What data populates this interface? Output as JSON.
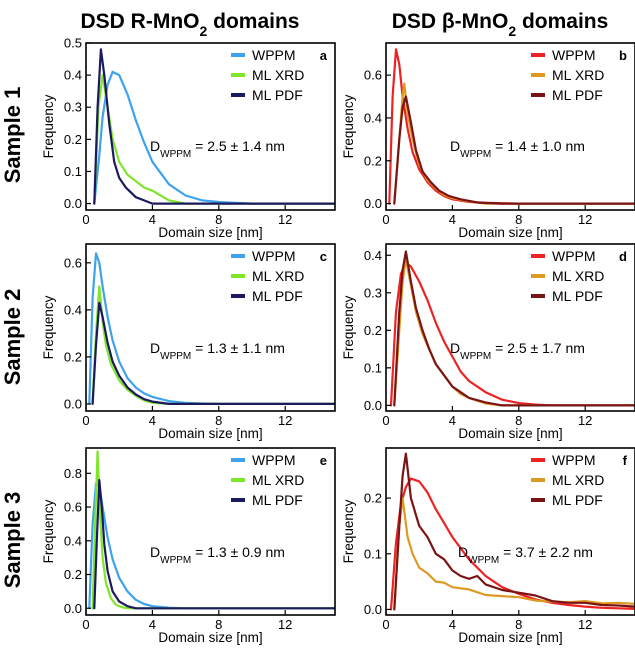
{
  "figure": {
    "col_titles": [
      {
        "pre": "DSD R-MnO",
        "sub": "2",
        "post": " domains"
      },
      {
        "pre": "DSD β-MnO",
        "sub": "2",
        "post": " domains"
      }
    ],
    "row_titles": [
      "Sample 1",
      "Sample 2",
      "Sample 3"
    ],
    "colors": {
      "WPPM_R": "#3fa2ef",
      "MLXRD_R": "#7fe52a",
      "MLPDF_R": "#1c1a5e",
      "WPPM_B": "#ee2222",
      "MLXRD_B": "#dd9a22",
      "MLPDF_B": "#7a1414"
    }
  },
  "chart_data": [
    {
      "type": "line",
      "panel_label": "a",
      "xlabel": "Domain size [nm]",
      "ylabel": "Frequency",
      "xlim": [
        0,
        15
      ],
      "xticks": [
        0,
        4,
        8,
        12
      ],
      "ylim": [
        -0.02,
        0.5
      ],
      "yticks": [
        0.0,
        0.1,
        0.2,
        0.3,
        0.4,
        0.5
      ],
      "ytick_labels": [
        "0.0",
        "0.1",
        "0.2",
        "0.3",
        "0.4",
        "0.5"
      ],
      "annotation": {
        "prefix": "D",
        "sub": "WPPM",
        "text": " = 2.5 ± 1.4 nm"
      },
      "series": [
        {
          "name": "WPPM",
          "color": "#3fa2ef",
          "x": [
            0.5,
            0.8,
            1.0,
            1.3,
            1.6,
            2.0,
            2.5,
            3.0,
            3.5,
            4.0,
            5.0,
            6.0,
            7.0,
            8.0,
            9.0,
            10.0,
            12.0,
            15.0
          ],
          "y": [
            0.0,
            0.15,
            0.27,
            0.37,
            0.41,
            0.4,
            0.34,
            0.26,
            0.19,
            0.13,
            0.06,
            0.025,
            0.01,
            0.005,
            0.002,
            0.0,
            0.0,
            0.0
          ]
        },
        {
          "name": "ML XRD",
          "color": "#7fe52a",
          "x": [
            0.5,
            0.75,
            1.0,
            1.3,
            1.6,
            2.0,
            2.5,
            3.0,
            3.5,
            4.0,
            4.5,
            5.0,
            6.0,
            15.0
          ],
          "y": [
            0.0,
            0.3,
            0.4,
            0.3,
            0.2,
            0.13,
            0.09,
            0.07,
            0.05,
            0.04,
            0.025,
            0.01,
            0.0,
            0.0
          ]
        },
        {
          "name": "ML PDF",
          "color": "#1c1a5e",
          "x": [
            0.5,
            0.7,
            0.9,
            1.1,
            1.4,
            1.7,
            2.0,
            2.4,
            3.0,
            3.5,
            4.0,
            5.0,
            15.0
          ],
          "y": [
            0.0,
            0.3,
            0.48,
            0.4,
            0.25,
            0.13,
            0.08,
            0.05,
            0.02,
            0.01,
            0.0,
            0.0,
            0.0
          ]
        }
      ]
    },
    {
      "type": "line",
      "panel_label": "b",
      "xlabel": "Domain size [nm]",
      "ylabel": "Frequency",
      "xlim": [
        0,
        15
      ],
      "xticks": [
        0,
        4,
        8,
        12
      ],
      "ylim": [
        -0.03,
        0.75
      ],
      "yticks": [
        0.0,
        0.2,
        0.4,
        0.6
      ],
      "ytick_labels": [
        "0.0",
        "0.2",
        "0.4",
        "0.6"
      ],
      "annotation": {
        "prefix": "D",
        "sub": "WPPM",
        "text": " = 1.4 ± 1.0 nm"
      },
      "series": [
        {
          "name": "WPPM",
          "color": "#ee2222",
          "x": [
            0.2,
            0.4,
            0.6,
            0.8,
            1.0,
            1.3,
            1.6,
            2.0,
            2.5,
            3.0,
            3.5,
            4.0,
            5.0,
            6.0,
            8.0,
            15.0
          ],
          "y": [
            0.0,
            0.5,
            0.72,
            0.65,
            0.5,
            0.35,
            0.24,
            0.16,
            0.1,
            0.06,
            0.035,
            0.02,
            0.008,
            0.003,
            0.0,
            0.0
          ]
        },
        {
          "name": "ML XRD",
          "color": "#dd9a22",
          "x": [
            0.5,
            0.8,
            1.0,
            1.1,
            1.3,
            1.6,
            2.0,
            2.5,
            3.0,
            3.5,
            4.0,
            5.0,
            6.0,
            8.0,
            15.0
          ],
          "y": [
            0.0,
            0.3,
            0.5,
            0.56,
            0.42,
            0.3,
            0.18,
            0.11,
            0.07,
            0.04,
            0.025,
            0.01,
            0.0,
            0.0,
            0.0
          ]
        },
        {
          "name": "ML PDF",
          "color": "#7a1414",
          "x": [
            0.5,
            0.8,
            1.0,
            1.2,
            1.5,
            1.8,
            2.2,
            2.7,
            3.2,
            3.8,
            4.5,
            5.5,
            7.0,
            15.0
          ],
          "y": [
            0.0,
            0.3,
            0.45,
            0.5,
            0.38,
            0.25,
            0.15,
            0.1,
            0.06,
            0.035,
            0.02,
            0.005,
            0.0,
            0.0
          ]
        }
      ]
    },
    {
      "type": "line",
      "panel_label": "c",
      "xlabel": "Domain size [nm]",
      "ylabel": "Frequency",
      "xlim": [
        0,
        15
      ],
      "xticks": [
        0,
        4,
        8,
        12
      ],
      "ylim": [
        -0.03,
        0.68
      ],
      "yticks": [
        0.0,
        0.2,
        0.4,
        0.6
      ],
      "ytick_labels": [
        "0.0",
        "0.2",
        "0.4",
        "0.6"
      ],
      "annotation": {
        "prefix": "D",
        "sub": "WPPM",
        "text": " = 1.3 ± 1.1 nm"
      },
      "series": [
        {
          "name": "WPPM",
          "color": "#3fa2ef",
          "x": [
            0.2,
            0.4,
            0.6,
            0.8,
            1.0,
            1.3,
            1.6,
            2.0,
            2.5,
            3.0,
            3.5,
            4.0,
            5.0,
            6.0,
            7.0,
            8.0,
            15.0
          ],
          "y": [
            0.0,
            0.45,
            0.64,
            0.6,
            0.5,
            0.37,
            0.27,
            0.18,
            0.11,
            0.07,
            0.045,
            0.03,
            0.012,
            0.005,
            0.002,
            0.0,
            0.0
          ]
        },
        {
          "name": "ML XRD",
          "color": "#7fe52a",
          "x": [
            0.4,
            0.6,
            0.8,
            1.0,
            1.2,
            1.5,
            2.0,
            2.5,
            3.0,
            3.5,
            4.0,
            5.0,
            15.0
          ],
          "y": [
            0.0,
            0.3,
            0.5,
            0.35,
            0.25,
            0.17,
            0.1,
            0.06,
            0.035,
            0.015,
            0.005,
            0.0,
            0.0
          ]
        },
        {
          "name": "ML PDF",
          "color": "#1c1a5e",
          "x": [
            0.4,
            0.6,
            0.8,
            1.0,
            1.3,
            1.6,
            2.0,
            2.5,
            3.0,
            3.5,
            4.0,
            5.0,
            15.0
          ],
          "y": [
            0.0,
            0.25,
            0.43,
            0.37,
            0.26,
            0.18,
            0.12,
            0.07,
            0.04,
            0.02,
            0.01,
            0.0,
            0.0
          ]
        }
      ]
    },
    {
      "type": "line",
      "panel_label": "d",
      "xlabel": "Domain size [nm]",
      "ylabel": "Frequency",
      "xlim": [
        0,
        15
      ],
      "xticks": [
        0,
        4,
        8,
        12
      ],
      "ylim": [
        -0.015,
        0.43
      ],
      "yticks": [
        0.0,
        0.1,
        0.2,
        0.3,
        0.4
      ],
      "ytick_labels": [
        "0.0",
        "0.1",
        "0.2",
        "0.3",
        "0.4"
      ],
      "annotation": {
        "prefix": "D",
        "sub": "WPPM",
        "text": " = 2.5 ± 1.7 nm"
      },
      "series": [
        {
          "name": "WPPM",
          "color": "#ee2222",
          "x": [
            0.3,
            0.6,
            0.9,
            1.2,
            1.5,
            2.0,
            2.5,
            3.0,
            3.5,
            4.0,
            4.5,
            5.0,
            6.0,
            7.0,
            8.0,
            9.0,
            10.0,
            15.0
          ],
          "y": [
            0.0,
            0.25,
            0.35,
            0.38,
            0.37,
            0.33,
            0.28,
            0.22,
            0.17,
            0.13,
            0.09,
            0.065,
            0.035,
            0.015,
            0.006,
            0.002,
            0.0,
            0.0
          ]
        },
        {
          "name": "ML XRD",
          "color": "#dd9a22",
          "x": [
            0.5,
            0.8,
            1.0,
            1.2,
            1.5,
            1.8,
            2.2,
            2.6,
            3.0,
            3.5,
            4.0,
            4.5,
            5.0,
            6.0,
            7.0,
            15.0
          ],
          "y": [
            0.0,
            0.2,
            0.33,
            0.39,
            0.32,
            0.25,
            0.19,
            0.15,
            0.11,
            0.08,
            0.05,
            0.03,
            0.02,
            0.005,
            0.0,
            0.0
          ]
        },
        {
          "name": "ML PDF",
          "color": "#7a1414",
          "x": [
            0.5,
            0.8,
            1.0,
            1.2,
            1.5,
            1.8,
            2.2,
            2.6,
            3.0,
            3.5,
            4.0,
            4.5,
            5.0,
            6.0,
            7.0,
            15.0
          ],
          "y": [
            0.0,
            0.25,
            0.36,
            0.41,
            0.33,
            0.26,
            0.2,
            0.15,
            0.11,
            0.08,
            0.05,
            0.035,
            0.02,
            0.008,
            0.0,
            0.0
          ]
        }
      ]
    },
    {
      "type": "line",
      "panel_label": "e",
      "xlabel": "Domain size [nm]",
      "ylabel": "Frequency",
      "xlim": [
        0,
        15
      ],
      "xticks": [
        0,
        4,
        8,
        12
      ],
      "ylim": [
        -0.04,
        0.95
      ],
      "yticks": [
        0.0,
        0.2,
        0.4,
        0.6,
        0.8
      ],
      "ytick_labels": [
        "0.0",
        "0.2",
        "0.4",
        "0.6",
        "0.8"
      ],
      "annotation": {
        "prefix": "D",
        "sub": "WPPM",
        "text": " = 1.3 ± 0.9 nm"
      },
      "series": [
        {
          "name": "WPPM",
          "color": "#3fa2ef",
          "x": [
            0.2,
            0.4,
            0.6,
            0.8,
            1.0,
            1.3,
            1.6,
            2.0,
            2.5,
            3.0,
            3.5,
            4.0,
            5.0,
            6.0,
            15.0
          ],
          "y": [
            0.0,
            0.5,
            0.74,
            0.72,
            0.6,
            0.42,
            0.29,
            0.18,
            0.1,
            0.05,
            0.025,
            0.012,
            0.003,
            0.0,
            0.0
          ]
        },
        {
          "name": "ML XRD",
          "color": "#7fe52a",
          "x": [
            0.4,
            0.55,
            0.7,
            0.85,
            1.0,
            1.2,
            1.5,
            1.8,
            2.2,
            2.6,
            15.0
          ],
          "y": [
            0.0,
            0.5,
            0.93,
            0.55,
            0.3,
            0.15,
            0.06,
            0.02,
            0.005,
            0.0,
            0.0
          ]
        },
        {
          "name": "ML PDF",
          "color": "#1c1a5e",
          "x": [
            0.5,
            0.65,
            0.8,
            0.95,
            1.1,
            1.3,
            1.6,
            2.0,
            2.5,
            3.0,
            15.0
          ],
          "y": [
            0.0,
            0.4,
            0.76,
            0.6,
            0.38,
            0.22,
            0.1,
            0.04,
            0.012,
            0.0,
            0.0
          ]
        }
      ]
    },
    {
      "type": "line",
      "panel_label": "f",
      "xlabel": "Domain size [nm]",
      "ylabel": "Frequency",
      "xlim": [
        0,
        15
      ],
      "xticks": [
        0,
        4,
        8,
        12
      ],
      "ylim": [
        -0.01,
        0.29
      ],
      "yticks": [
        0.0,
        0.1,
        0.2
      ],
      "ytick_labels": [
        "0.0",
        "0.1",
        "0.2"
      ],
      "annotation": {
        "prefix": "D",
        "sub": "WPPM",
        "text": " = 3.7 ± 2.2 nm"
      },
      "series": [
        {
          "name": "WPPM",
          "color": "#ee2222",
          "x": [
            0.3,
            0.6,
            0.9,
            1.2,
            1.5,
            2.0,
            2.5,
            3.0,
            3.5,
            4.0,
            5.0,
            6.0,
            7.0,
            8.0,
            9.0,
            10.0,
            11.0,
            12.0,
            13.0,
            14.0,
            15.0
          ],
          "y": [
            0.0,
            0.12,
            0.19,
            0.22,
            0.235,
            0.23,
            0.21,
            0.18,
            0.155,
            0.13,
            0.09,
            0.06,
            0.04,
            0.028,
            0.018,
            0.012,
            0.008,
            0.005,
            0.003,
            0.002,
            0.001
          ]
        },
        {
          "name": "ML XRD",
          "color": "#dd9a22",
          "x": [
            0.5,
            0.8,
            1.0,
            1.3,
            1.6,
            2.0,
            2.5,
            3.0,
            3.5,
            4.0,
            4.5,
            5.0,
            6.0,
            7.0,
            8.0,
            9.0,
            10.0,
            11.0,
            12.0,
            13.0,
            14.0,
            15.0
          ],
          "y": [
            0.0,
            0.15,
            0.2,
            0.13,
            0.1,
            0.075,
            0.065,
            0.05,
            0.048,
            0.04,
            0.038,
            0.036,
            0.026,
            0.024,
            0.022,
            0.016,
            0.014,
            0.013,
            0.015,
            0.011,
            0.012,
            0.01
          ]
        },
        {
          "name": "ML PDF",
          "color": "#7a1414",
          "x": [
            0.5,
            0.8,
            1.0,
            1.2,
            1.5,
            2.0,
            2.5,
            3.0,
            3.5,
            4.0,
            4.5,
            5.0,
            5.5,
            6.0,
            7.0,
            8.0,
            9.0,
            10.0,
            11.0,
            12.0,
            13.0,
            14.0,
            15.0
          ],
          "y": [
            0.0,
            0.15,
            0.24,
            0.28,
            0.2,
            0.15,
            0.13,
            0.1,
            0.09,
            0.07,
            0.06,
            0.055,
            0.06,
            0.045,
            0.035,
            0.03,
            0.025,
            0.015,
            0.012,
            0.012,
            0.008,
            0.007,
            0.005
          ]
        }
      ]
    }
  ]
}
